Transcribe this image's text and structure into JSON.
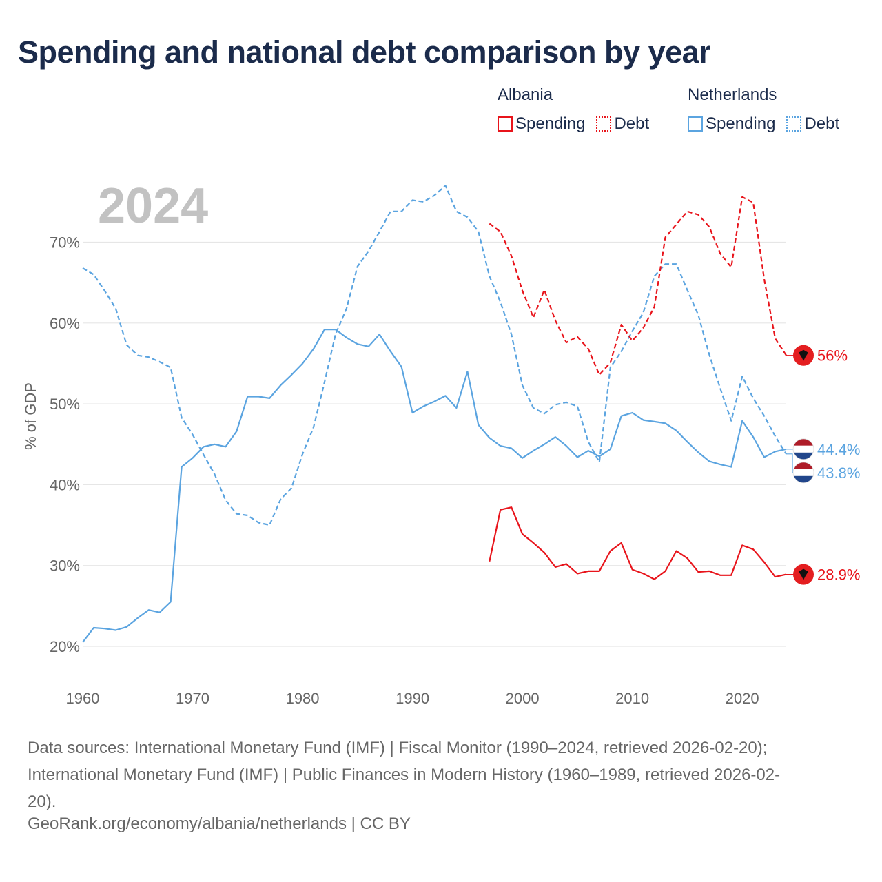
{
  "title": "Spending and national debt comparison by year",
  "legend": {
    "groups": [
      {
        "country": "Albania",
        "items": [
          {
            "label": "Spending",
            "style": "solid"
          },
          {
            "label": "Debt",
            "style": "dotted"
          }
        ],
        "color": "#e8141b"
      },
      {
        "country": "Netherlands",
        "items": [
          {
            "label": "Spending",
            "style": "solid"
          },
          {
            "label": "Debt",
            "style": "dotted"
          }
        ],
        "color": "#5ba4e0"
      }
    ]
  },
  "colors": {
    "albania": "#e8141b",
    "netherlands": "#5ba4e0",
    "title": "#1b2b4b",
    "grid": "#e6e6e6",
    "axis_text": "#666666",
    "year_watermark": "#c2c2c2"
  },
  "footer": {
    "source_lines": [
      "Data sources: International Monetary Fund (IMF) | Fiscal Monitor (1990–2024, retrieved 2026-02-20);",
      "International Monetary Fund (IMF) | Public Finances in Modern History (1960–1989, retrieved 2026-02-",
      "20)."
    ],
    "credit": "GeoRank.org/economy/albania/netherlands | CC BY"
  },
  "chart_data": {
    "type": "line",
    "title": "Spending and national debt comparison by year",
    "highlight_year_label": "2024",
    "xlabel": "",
    "ylabel": "% of GDP",
    "xlim": [
      1960,
      2024
    ],
    "ylim": [
      20,
      70
    ],
    "x_ticks": [
      1960,
      1970,
      1980,
      1990,
      2000,
      2010,
      2020
    ],
    "y_ticks": [
      20,
      30,
      40,
      50,
      60,
      70
    ],
    "y_tick_labels": [
      "20%",
      "30%",
      "40%",
      "50%",
      "60%",
      "70%"
    ],
    "grid": true,
    "series": [
      {
        "name": "Netherlands Debt",
        "country": "Netherlands",
        "metric": "Debt",
        "dashed": true,
        "color": "#5ba4e0",
        "x": [
          1960,
          1961,
          1962,
          1963,
          1964,
          1965,
          1966,
          1967,
          1968,
          1969,
          1970,
          1971,
          1972,
          1973,
          1974,
          1975,
          1976,
          1977,
          1978,
          1979,
          1980,
          1981,
          1982,
          1983,
          1984,
          1985,
          1986,
          1987,
          1988,
          1989,
          1990,
          1991,
          1992,
          1993,
          1994,
          1995,
          1996,
          1997,
          1998,
          1999,
          2000,
          2001,
          2002,
          2003,
          2004,
          2005,
          2006,
          2007,
          2008,
          2009,
          2010,
          2011,
          2012,
          2013,
          2014,
          2015,
          2016,
          2017,
          2018,
          2019,
          2020,
          2021,
          2022,
          2023,
          2024
        ],
        "values": [
          66.8,
          66.0,
          64.0,
          61.8,
          57.3,
          56.0,
          55.8,
          55.2,
          54.5,
          48.3,
          46.2,
          43.7,
          41.3,
          38.1,
          36.4,
          36.2,
          35.3,
          35.0,
          38.2,
          39.6,
          43.8,
          47.1,
          52.7,
          58.6,
          61.8,
          67.0,
          68.9,
          71.3,
          73.8,
          73.8,
          75.2,
          75.0,
          75.8,
          77.0,
          73.8,
          73.1,
          71.3,
          65.8,
          62.6,
          58.6,
          52.3,
          49.5,
          48.8,
          49.9,
          50.2,
          49.7,
          45.3,
          42.8,
          54.5,
          56.5,
          59.0,
          61.3,
          65.8,
          67.3,
          67.3,
          64.1,
          61.0,
          56.1,
          51.9,
          47.9,
          53.4,
          50.7,
          48.5,
          46.0,
          43.8
        ],
        "end_label": "43.8%"
      },
      {
        "name": "Netherlands Spending",
        "country": "Netherlands",
        "metric": "Spending",
        "dashed": false,
        "color": "#5ba4e0",
        "x": [
          1960,
          1961,
          1962,
          1963,
          1964,
          1965,
          1966,
          1967,
          1968,
          1969,
          1970,
          1971,
          1972,
          1973,
          1974,
          1975,
          1976,
          1977,
          1978,
          1979,
          1980,
          1981,
          1982,
          1983,
          1984,
          1985,
          1986,
          1987,
          1988,
          1989,
          1990,
          1991,
          1992,
          1993,
          1994,
          1995,
          1996,
          1997,
          1998,
          1999,
          2000,
          2001,
          2002,
          2003,
          2004,
          2005,
          2006,
          2007,
          2008,
          2009,
          2010,
          2011,
          2012,
          2013,
          2014,
          2015,
          2016,
          2017,
          2018,
          2019,
          2020,
          2021,
          2022,
          2023,
          2024
        ],
        "values": [
          20.5,
          22.3,
          22.2,
          22.0,
          22.4,
          23.5,
          24.5,
          24.2,
          25.5,
          42.2,
          43.3,
          44.7,
          45.0,
          44.7,
          46.6,
          50.9,
          50.9,
          50.7,
          52.3,
          53.6,
          55.0,
          56.8,
          59.2,
          59.2,
          58.2,
          57.4,
          57.1,
          58.6,
          56.5,
          54.6,
          48.9,
          49.7,
          50.3,
          51.0,
          49.5,
          54.0,
          47.4,
          45.8,
          44.8,
          44.5,
          43.3,
          44.2,
          45.0,
          45.9,
          44.8,
          43.4,
          44.2,
          43.5,
          44.4,
          48.5,
          48.9,
          48.0,
          47.8,
          47.6,
          46.7,
          45.3,
          44.0,
          42.9,
          42.5,
          42.2,
          47.9,
          45.9,
          43.4,
          44.1,
          44.4
        ],
        "end_label": "44.4%"
      },
      {
        "name": "Albania Debt",
        "country": "Albania",
        "metric": "Debt",
        "dashed": true,
        "color": "#e8141b",
        "x": [
          1997,
          1998,
          1999,
          2000,
          2001,
          2002,
          2003,
          2004,
          2005,
          2006,
          2007,
          2008,
          2009,
          2010,
          2011,
          2012,
          2013,
          2014,
          2015,
          2016,
          2017,
          2018,
          2019,
          2020,
          2021,
          2022,
          2023,
          2024
        ],
        "values": [
          72.3,
          71.3,
          68.3,
          64.0,
          60.7,
          64.1,
          60.3,
          57.6,
          58.3,
          56.8,
          53.6,
          55.1,
          59.8,
          57.8,
          59.4,
          62.0,
          70.6,
          72.2,
          73.8,
          73.4,
          71.9,
          68.6,
          66.9,
          75.6,
          74.9,
          65.4,
          58.1,
          56.0
        ],
        "end_label": "56%"
      },
      {
        "name": "Albania Spending",
        "country": "Albania",
        "metric": "Spending",
        "dashed": false,
        "color": "#e8141b",
        "x": [
          1997,
          1998,
          1999,
          2000,
          2001,
          2002,
          2003,
          2004,
          2005,
          2006,
          2007,
          2008,
          2009,
          2010,
          2011,
          2012,
          2013,
          2014,
          2015,
          2016,
          2017,
          2018,
          2019,
          2020,
          2021,
          2022,
          2023,
          2024
        ],
        "values": [
          30.5,
          36.9,
          37.2,
          33.9,
          32.8,
          31.6,
          29.8,
          30.2,
          29.0,
          29.3,
          29.3,
          31.8,
          32.8,
          29.5,
          29.0,
          28.3,
          29.3,
          31.8,
          30.9,
          29.2,
          29.3,
          28.8,
          28.8,
          32.5,
          32.0,
          30.4,
          28.6,
          28.9
        ],
        "end_label": "28.9%"
      }
    ]
  }
}
